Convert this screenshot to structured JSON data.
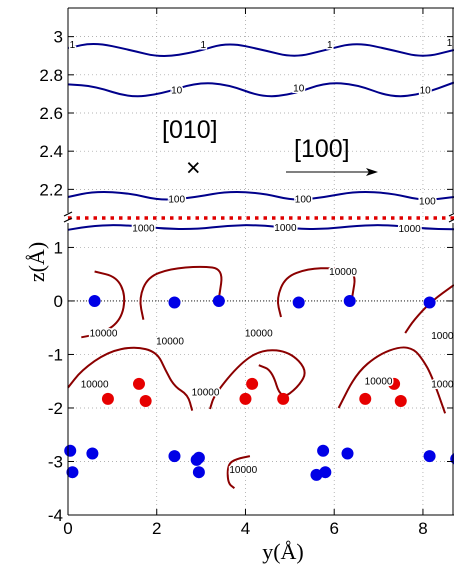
{
  "chart_data": {
    "type": "contour",
    "xlabel": "y(Å)",
    "ylabel": "z(Å)",
    "xlim": [
      0,
      8.7
    ],
    "upper_panel": {
      "ylim": [
        2.05,
        3.15
      ],
      "yticks": [
        "2.2",
        "2.4",
        "2.6",
        "2.8",
        "3"
      ]
    },
    "lower_panel": {
      "ylim": [
        -4,
        1.55
      ],
      "yticks": [
        "-4",
        "-3",
        "-2",
        "-1",
        "0",
        "1"
      ]
    },
    "xticks": [
      "0",
      "2",
      "4",
      "6",
      "8"
    ],
    "grid": true,
    "annotations": {
      "direction_010": "[010]",
      "cross_symbol": "×",
      "direction_100": "[100]"
    },
    "contour_lines": [
      {
        "level": "1",
        "color": "#00008b",
        "panel": "upper",
        "x": [
          0,
          0.6,
          1.4,
          2.1,
          2.9,
          3.6,
          4.4,
          5.1,
          5.8,
          6.5,
          7.3,
          8.0,
          8.7
        ],
        "y": [
          2.94,
          2.97,
          2.93,
          2.89,
          2.92,
          2.97,
          2.93,
          2.89,
          2.93,
          2.97,
          2.93,
          2.89,
          2.93
        ]
      },
      {
        "level": "10",
        "color": "#00008b",
        "panel": "upper",
        "x": [
          0,
          0.6,
          1.4,
          2.1,
          2.9,
          3.6,
          4.4,
          5.1,
          5.8,
          6.5,
          7.3,
          8.0,
          8.7
        ],
        "y": [
          2.75,
          2.74,
          2.68,
          2.7,
          2.76,
          2.75,
          2.68,
          2.7,
          2.76,
          2.75,
          2.68,
          2.7,
          2.76
        ]
      },
      {
        "level": "100",
        "color": "#00008b",
        "panel": "upper",
        "x": [
          0,
          0.6,
          1.4,
          2.1,
          2.9,
          3.6,
          4.4,
          5.1,
          5.8,
          6.5,
          7.3,
          8.0,
          8.7
        ],
        "y": [
          2.16,
          2.19,
          2.18,
          2.14,
          2.16,
          2.19,
          2.18,
          2.14,
          2.16,
          2.19,
          2.18,
          2.14,
          2.16
        ]
      },
      {
        "level": "1000",
        "color": "#00008b",
        "panel": "lower",
        "x": [
          0,
          0.6,
          1.3,
          2.1,
          2.9,
          3.6,
          4.3,
          5.1,
          5.8,
          6.5,
          7.3,
          8.0,
          8.7
        ],
        "y": [
          1.33,
          1.41,
          1.42,
          1.35,
          1.34,
          1.41,
          1.42,
          1.35,
          1.34,
          1.41,
          1.42,
          1.35,
          1.34
        ]
      },
      {
        "level": "10000",
        "color": "#8b0000",
        "panel": "lower",
        "x": [
          0.6,
          1.1,
          1.3,
          1.2,
          0.8,
          0.3
        ],
        "y": [
          0.55,
          0.45,
          0.1,
          -0.35,
          -0.6,
          -0.68
        ]
      },
      {
        "level": "10000",
        "color": "#8b0000",
        "panel": "lower",
        "x": [
          1.7,
          1.6,
          1.8,
          2.3,
          3.0,
          3.5,
          3.4
        ],
        "y": [
          -0.35,
          0.05,
          0.45,
          0.6,
          0.65,
          0.6,
          0.05
        ]
      },
      {
        "level": "10000",
        "color": "#8b0000",
        "panel": "lower",
        "x": [
          3.2,
          3.3,
          3.9,
          4.4,
          5.0,
          5.4,
          5.2,
          4.8,
          4.6,
          4.3
        ],
        "y": [
          -2.02,
          -1.75,
          -1.15,
          -0.9,
          -0.95,
          -1.3,
          -1.6,
          -1.85,
          -1.3,
          -1.2
        ]
      },
      {
        "level": "10000",
        "color": "#8b0000",
        "panel": "lower",
        "x": [
          0,
          0.3,
          0.9,
          1.5,
          2.0,
          2.2,
          2.4,
          2.7,
          2.8
        ],
        "y": [
          -1.62,
          -1.3,
          -0.95,
          -0.85,
          -0.95,
          -1.3,
          -1.6,
          -1.75,
          -2.05
        ]
      },
      {
        "level": "10000",
        "color": "#8b0000",
        "panel": "lower",
        "x": [
          4.8,
          4.7,
          4.9,
          5.4,
          6.0,
          6.5,
          6.4
        ],
        "y": [
          -0.3,
          0.05,
          0.45,
          0.6,
          0.62,
          0.55,
          0.05
        ]
      },
      {
        "level": "10000",
        "color": "#8b0000",
        "panel": "lower",
        "x": [
          7.6,
          7.8,
          8.2,
          8.7
        ],
        "y": [
          -0.6,
          -0.35,
          0.0,
          0.3
        ]
      },
      {
        "level": "10000",
        "color": "#8b0000",
        "panel": "lower",
        "x": [
          6.1,
          6.5,
          7.0,
          7.5,
          7.8,
          8.0,
          8.2,
          8.5
        ],
        "y": [
          -2.0,
          -1.35,
          -1.0,
          -0.85,
          -0.9,
          -1.1,
          -1.4,
          -2.1
        ]
      },
      {
        "level": "10000",
        "color": "#8b0000",
        "panel": "lower",
        "x": [
          3.75,
          3.6,
          3.6,
          3.8,
          4.1
        ],
        "y": [
          -3.5,
          -3.4,
          -3.05,
          -2.95,
          -2.9
        ]
      }
    ],
    "contour_label_points": [
      {
        "text": "1",
        "x": 0.1,
        "y": 2.96,
        "panel": "upper"
      },
      {
        "text": "1",
        "x": 3.05,
        "y": 2.96,
        "panel": "upper"
      },
      {
        "text": "1",
        "x": 5.9,
        "y": 2.96,
        "panel": "upper"
      },
      {
        "text": "1",
        "x": 8.6,
        "y": 2.97,
        "panel": "upper"
      },
      {
        "text": "10",
        "x": 2.45,
        "y": 2.72,
        "panel": "upper"
      },
      {
        "text": "10",
        "x": 5.2,
        "y": 2.73,
        "panel": "upper"
      },
      {
        "text": "10",
        "x": 8.05,
        "y": 2.72,
        "panel": "upper"
      },
      {
        "text": "100",
        "x": 2.45,
        "y": 2.15,
        "panel": "upper"
      },
      {
        "text": "100",
        "x": 5.3,
        "y": 2.15,
        "panel": "upper"
      },
      {
        "text": "100",
        "x": 8.1,
        "y": 2.14,
        "panel": "upper"
      },
      {
        "text": "1000",
        "x": 1.7,
        "y": 1.36,
        "panel": "lower"
      },
      {
        "text": "1000",
        "x": 4.9,
        "y": 1.37,
        "panel": "lower"
      },
      {
        "text": "1000",
        "x": 7.7,
        "y": 1.35,
        "panel": "lower"
      },
      {
        "text": "10000",
        "x": 0.8,
        "y": -0.6,
        "panel": "lower"
      },
      {
        "text": "10000",
        "x": 2.3,
        "y": -0.75,
        "panel": "lower"
      },
      {
        "text": "10000",
        "x": 4.3,
        "y": -0.6,
        "panel": "lower"
      },
      {
        "text": "10000",
        "x": 6.2,
        "y": 0.55,
        "panel": "lower"
      },
      {
        "text": "10000",
        "x": 8.5,
        "y": -0.65,
        "panel": "lower"
      },
      {
        "text": "10000",
        "x": 0.6,
        "y": -1.55,
        "panel": "lower"
      },
      {
        "text": "10000",
        "x": 3.1,
        "y": -1.7,
        "panel": "lower"
      },
      {
        "text": "10000",
        "x": 7.0,
        "y": -1.5,
        "panel": "lower"
      },
      {
        "text": "10000",
        "x": 8.5,
        "y": -1.55,
        "panel": "lower"
      },
      {
        "text": "10000",
        "x": 3.95,
        "y": -3.15,
        "panel": "lower"
      }
    ],
    "blue_atoms": {
      "color": "#0000e6",
      "points": [
        [
          0.6,
          0.0
        ],
        [
          2.4,
          -0.03
        ],
        [
          3.4,
          0.0
        ],
        [
          5.2,
          -0.03
        ],
        [
          6.35,
          0.0
        ],
        [
          8.15,
          -0.03
        ],
        [
          0.05,
          -2.8
        ],
        [
          0.1,
          -3.2
        ],
        [
          0.55,
          -2.85
        ],
        [
          2.4,
          -2.9
        ],
        [
          2.95,
          -2.93
        ],
        [
          2.95,
          -3.2
        ],
        [
          2.9,
          -2.97
        ],
        [
          5.6,
          -3.25
        ],
        [
          5.75,
          -2.8
        ],
        [
          5.8,
          -3.2
        ],
        [
          6.3,
          -2.85
        ],
        [
          8.15,
          -2.9
        ],
        [
          8.75,
          -2.95
        ]
      ]
    },
    "red_atoms": {
      "color": "#e60000",
      "points": [
        [
          0.9,
          -1.83
        ],
        [
          1.6,
          -1.55
        ],
        [
          1.75,
          -1.87
        ],
        [
          4.0,
          -1.83
        ],
        [
          4.15,
          -1.55
        ],
        [
          4.85,
          -1.83
        ],
        [
          6.7,
          -1.83
        ],
        [
          7.35,
          -1.55
        ],
        [
          7.5,
          -1.87
        ]
      ]
    },
    "reference_lines": [
      {
        "kind": "dotted_black",
        "y": 0.0
      },
      {
        "kind": "dotted_red_break",
        "y": 1.55
      }
    ]
  }
}
